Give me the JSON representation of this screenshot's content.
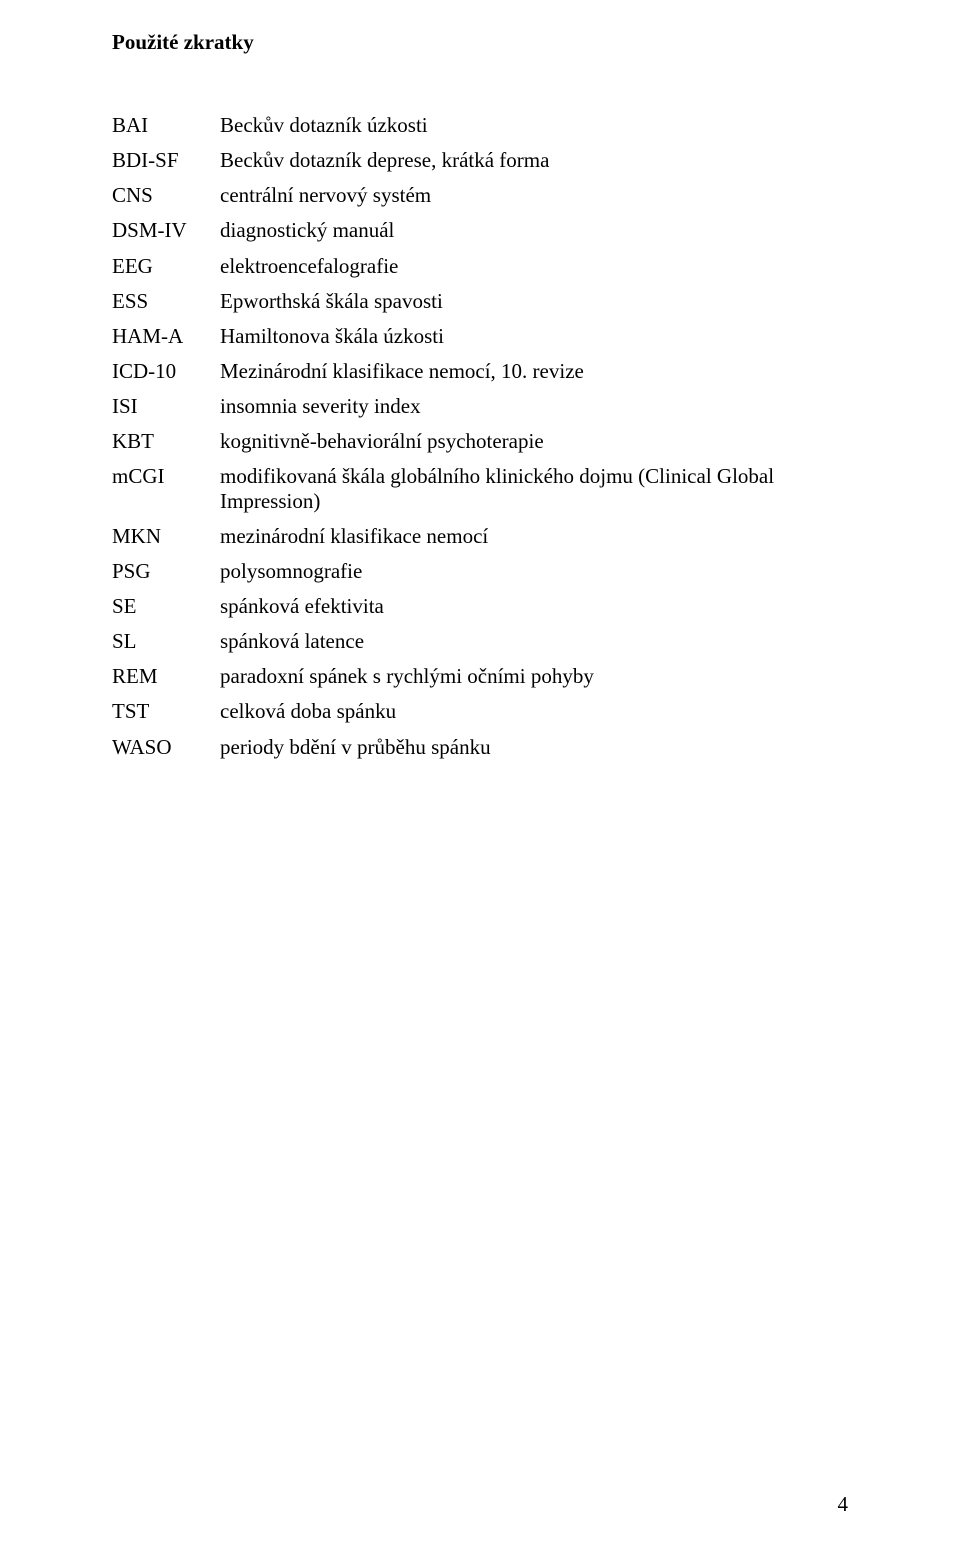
{
  "title": "Použité zkratky",
  "entries": [
    {
      "abbr": "BAI",
      "desc": "Beckův dotazník úzkosti"
    },
    {
      "abbr": "BDI-SF",
      "desc": "Beckův dotazník deprese, krátká forma"
    },
    {
      "abbr": "CNS",
      "desc": "centrální nervový systém"
    },
    {
      "abbr": "DSM-IV",
      "desc": "diagnostický manuál"
    },
    {
      "abbr": "EEG",
      "desc": "elektroencefalografie"
    },
    {
      "abbr": "ESS",
      "desc": "Epworthská škála spavosti"
    },
    {
      "abbr": "HAM-A",
      "desc": "Hamiltonova škála úzkosti"
    },
    {
      "abbr": "ICD-10",
      "desc": "Mezinárodní klasifikace nemocí, 10. revize"
    },
    {
      "abbr": "ISI",
      "desc": "insomnia severity index"
    },
    {
      "abbr": "KBT",
      "desc": "kognitivně-behaviorální psychoterapie"
    },
    {
      "abbr": "mCGI",
      "desc": "modifikovaná škála globálního klinického dojmu (Clinical Global Impression)"
    },
    {
      "abbr": "MKN",
      "desc": "mezinárodní klasifikace nemocí"
    },
    {
      "abbr": "PSG",
      "desc": "polysomnografie"
    },
    {
      "abbr": "SE",
      "desc": "spánková efektivita"
    },
    {
      "abbr": "SL",
      "desc": "spánková latence"
    },
    {
      "abbr": "REM",
      "desc": "paradoxní spánek s rychlými očními pohyby"
    },
    {
      "abbr": "TST",
      "desc": "celková doba spánku"
    },
    {
      "abbr": "WASO",
      "desc": "periody bdění v průběhu spánku"
    }
  ],
  "page_number": "4"
}
